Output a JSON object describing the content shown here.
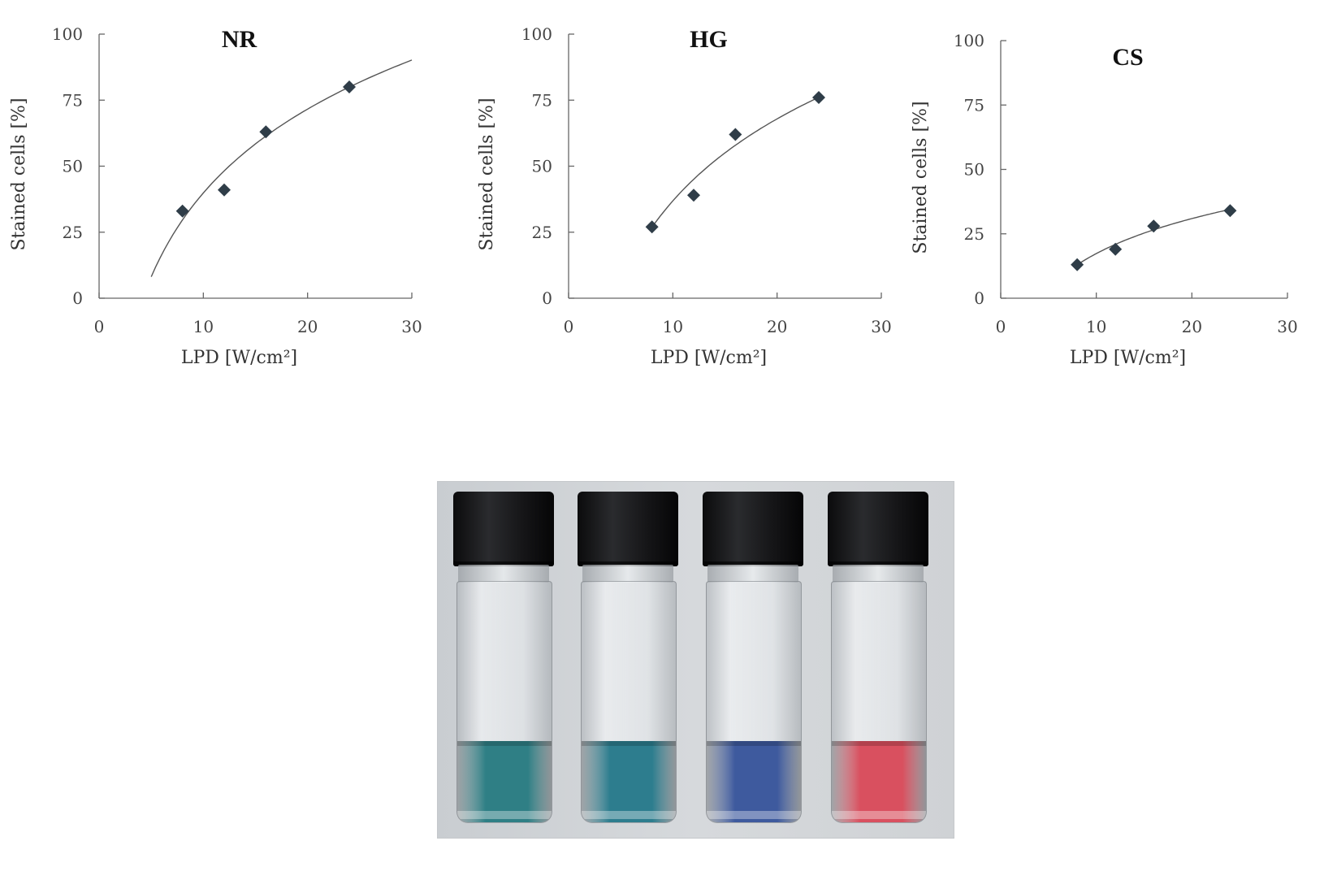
{
  "chart_data": [
    {
      "type": "scatter",
      "title": "NR",
      "xlabel": "LPD  [W/cm²]",
      "ylabel": "Stained cells [%]",
      "xlim": [
        0,
        30
      ],
      "ylim": [
        0,
        100
      ],
      "xticks": [
        "0",
        "10",
        "20",
        "30"
      ],
      "yticks": [
        "0",
        "25",
        "50",
        "75",
        "100"
      ],
      "x": [
        8,
        12,
        16,
        24
      ],
      "y": [
        33,
        41,
        63,
        80
      ],
      "fit": {
        "model": "logarithmic",
        "a": 45.8,
        "b": -65.6,
        "x_range": [
          5,
          30
        ]
      },
      "grid": false,
      "legend": "none"
    },
    {
      "type": "scatter",
      "title": "HG",
      "xlabel": "LPD  [W/cm²]",
      "ylabel": "Stained cells [%]",
      "xlim": [
        0,
        30
      ],
      "ylim": [
        0,
        100
      ],
      "xticks": [
        "0",
        "10",
        "20",
        "30"
      ],
      "yticks": [
        "0",
        "25",
        "50",
        "75",
        "100"
      ],
      "x": [
        8,
        12,
        16,
        24
      ],
      "y": [
        27,
        39,
        62,
        76
      ],
      "fit": {
        "model": "logarithmic",
        "a": 44.8,
        "b": -66.3,
        "x_range": [
          8,
          24
        ]
      },
      "grid": false,
      "legend": "none"
    },
    {
      "type": "scatter",
      "title": "CS",
      "xlabel": "LPD  [W/cm²]",
      "ylabel": "Stained cells [%]",
      "xlim": [
        0,
        30
      ],
      "ylim": [
        0,
        100
      ],
      "xticks": [
        "0",
        "10",
        "20",
        "30"
      ],
      "yticks": [
        "0",
        "25",
        "50",
        "75",
        "100"
      ],
      "x": [
        8,
        12,
        16,
        24
      ],
      "y": [
        13,
        19,
        28,
        34
      ],
      "fit": {
        "model": "logarithmic",
        "a": 19.6,
        "b": -27.8,
        "x_range": [
          8,
          24
        ]
      },
      "grid": false,
      "legend": "none"
    }
  ],
  "photo": {
    "vials": [
      {
        "liquid_color": "#2f7f85"
      },
      {
        "liquid_color": "#2d7d8e"
      },
      {
        "liquid_color": "#3e5a9e"
      },
      {
        "liquid_color": "#d9505f"
      }
    ]
  }
}
